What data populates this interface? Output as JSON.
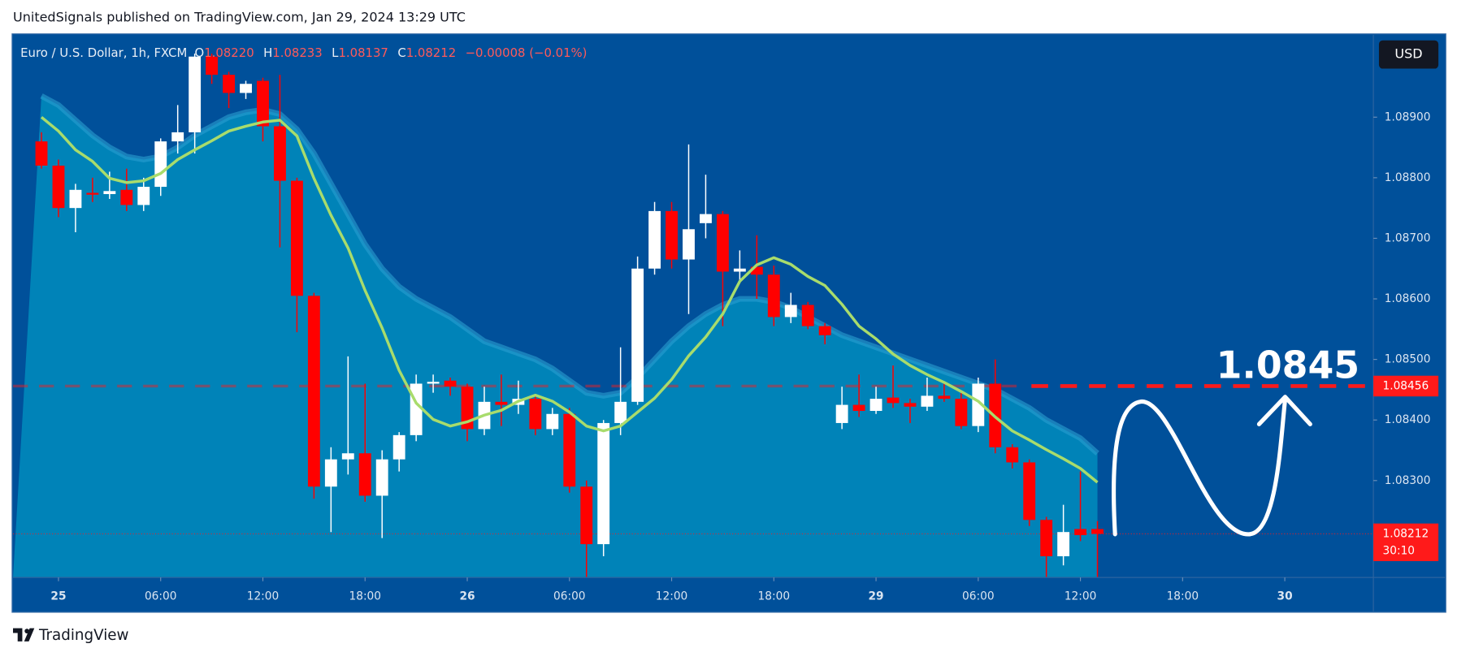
{
  "chart_data": {
    "type": "candlestick",
    "publisher": "UnitedSignals published on TradingView.com, Jan 29, 2024 13:29 UTC",
    "symbol": "Euro / U.S. Dollar, 1h, FXCM",
    "quote": [
      {
        "key": "O",
        "value": "1.08220"
      },
      {
        "key": "H",
        "value": "1.08233"
      },
      {
        "key": "L",
        "value": "1.08137"
      },
      {
        "key": "C",
        "value": "1.08212"
      }
    ],
    "change": "−0.00008 (−0.01%)",
    "currency": "USD",
    "brand": "TradingView",
    "annotation": "1.0845",
    "up_color": "#ffffff",
    "down_color": "#ff0000",
    "x": [
      -1,
      0,
      1,
      2,
      3,
      4,
      5,
      6,
      7,
      8,
      9,
      10,
      11,
      12,
      13,
      14,
      15,
      16,
      17,
      18,
      19,
      20,
      21,
      22,
      23,
      24,
      25,
      26,
      27,
      28,
      29,
      30,
      31,
      32,
      33,
      34,
      35,
      36,
      37,
      38,
      39,
      40,
      41,
      42,
      43,
      44,
      45,
      46,
      47,
      48,
      49,
      50,
      51,
      52,
      53,
      54,
      55,
      56,
      57,
      58,
      59,
      60,
      61
    ],
    "open": [
      1.0886,
      1.0882,
      1.0875,
      1.08775,
      1.08773,
      1.0878,
      1.08755,
      1.08785,
      1.0886,
      1.08875,
      1.09,
      1.0897,
      1.0894,
      1.0896,
      1.08885,
      1.08795,
      1.08605,
      1.0829,
      1.08335,
      1.08345,
      1.08275,
      1.08335,
      1.08375,
      1.0846,
      1.08465,
      1.08455,
      1.08385,
      1.0843,
      1.08425,
      1.08435,
      1.08385,
      1.0841,
      1.0829,
      1.08195,
      1.08395,
      1.0843,
      1.0865,
      1.08745,
      1.08665,
      1.08725,
      1.0874,
      1.08645,
      1.08653,
      1.0864,
      1.0857,
      1.0859,
      1.08555,
      1.08395,
      1.08425,
      1.08415,
      1.08437,
      1.08428,
      1.08422,
      1.0844,
      1.08435,
      1.0839,
      1.0846,
      1.08355,
      1.0833,
      1.08235,
      1.08175,
      1.0822,
      1.0822
    ],
    "high": [
      1.08875,
      1.0883,
      1.0879,
      1.088,
      1.0881,
      1.08815,
      1.088,
      1.08865,
      1.0892,
      1.09005,
      1.09005,
      1.08975,
      1.0896,
      1.08965,
      1.0897,
      1.088,
      1.0861,
      1.08355,
      1.08505,
      1.0846,
      1.0835,
      1.0838,
      1.08475,
      1.08475,
      1.0847,
      1.0846,
      1.08455,
      1.08475,
      1.08465,
      1.0844,
      1.0842,
      1.0842,
      1.083,
      1.084,
      1.0852,
      1.0867,
      1.0876,
      1.0876,
      1.08855,
      1.08805,
      1.08745,
      1.0868,
      1.08705,
      1.08655,
      1.0861,
      1.08595,
      1.0856,
      1.08455,
      1.08475,
      1.08455,
      1.0849,
      1.08435,
      1.0847,
      1.0846,
      1.08445,
      1.0847,
      1.085,
      1.0836,
      1.08335,
      1.0824,
      1.0826,
      1.08315,
      1.08233
    ],
    "low": [
      1.08815,
      1.08735,
      1.0871,
      1.0876,
      1.08765,
      1.08745,
      1.08745,
      1.0877,
      1.0884,
      1.0884,
      1.08955,
      1.08915,
      1.0893,
      1.0886,
      1.08685,
      1.08545,
      1.0827,
      1.08215,
      1.0831,
      1.08265,
      1.08205,
      1.08315,
      1.08365,
      1.08445,
      1.0844,
      1.08365,
      1.08375,
      1.0839,
      1.0841,
      1.08375,
      1.08375,
      1.0828,
      1.0814,
      1.08175,
      1.08375,
      1.08425,
      1.0864,
      1.0865,
      1.08575,
      1.087,
      1.08555,
      1.0863,
      1.086,
      1.08555,
      1.0856,
      1.0855,
      1.08525,
      1.08385,
      1.08405,
      1.0841,
      1.0842,
      1.08395,
      1.08415,
      1.0843,
      1.08385,
      1.0838,
      1.08345,
      1.0832,
      1.08225,
      1.0814,
      1.0816,
      1.082,
      1.08137
    ],
    "close": [
      1.0882,
      1.0875,
      1.0878,
      1.08772,
      1.08778,
      1.08755,
      1.08785,
      1.0886,
      1.08875,
      1.09,
      1.0897,
      1.0894,
      1.08955,
      1.08885,
      1.08795,
      1.08605,
      1.0829,
      1.08335,
      1.08345,
      1.08275,
      1.08335,
      1.08375,
      1.0846,
      1.08463,
      1.08455,
      1.08385,
      1.0843,
      1.08425,
      1.08435,
      1.08385,
      1.0841,
      1.0829,
      1.08195,
      1.08395,
      1.0843,
      1.0865,
      1.08745,
      1.08665,
      1.08715,
      1.0874,
      1.08645,
      1.0865,
      1.0864,
      1.0857,
      1.0859,
      1.08555,
      1.0854,
      1.08425,
      1.08415,
      1.08435,
      1.08428,
      1.08422,
      1.0844,
      1.08435,
      1.0839,
      1.0846,
      1.08355,
      1.0833,
      1.08235,
      1.08175,
      1.08215,
      1.0821,
      1.08212
    ],
    "ma": {
      "color": "#a8dc6c",
      "values": [
        1.089,
        1.08877,
        1.08846,
        1.08827,
        1.08799,
        1.08792,
        1.08795,
        1.08807,
        1.0883,
        1.08846,
        1.08861,
        1.08877,
        1.08885,
        1.08892,
        1.08895,
        1.08869,
        1.08799,
        1.08738,
        1.08684,
        1.08614,
        1.08552,
        1.08482,
        1.08428,
        1.08401,
        1.0839,
        1.08397,
        1.08408,
        1.08416,
        1.08431,
        1.08441,
        1.08431,
        1.08413,
        1.0839,
        1.08382,
        1.0839,
        1.08413,
        1.08436,
        1.08467,
        1.08506,
        1.08537,
        1.08575,
        1.08629,
        1.08656,
        1.08668,
        1.08657,
        1.08637,
        1.08622,
        1.08591,
        1.08555,
        1.08534,
        1.08509,
        1.0849,
        1.08475,
        1.08462,
        1.08447,
        1.08431,
        1.08405,
        1.08382,
        1.08367,
        1.08351,
        1.08336,
        1.0832,
        1.08297
      ]
    },
    "band": {
      "color": "#0083b8",
      "values": [
        1.08935,
        1.0892,
        1.08895,
        1.0887,
        1.0885,
        1.08835,
        1.0883,
        1.08835,
        1.0885,
        1.0887,
        1.08885,
        1.089,
        1.08908,
        1.08912,
        1.08905,
        1.0888,
        1.0884,
        1.0879,
        1.0874,
        1.0869,
        1.0865,
        1.0862,
        1.086,
        1.08585,
        1.0857,
        1.0855,
        1.0853,
        1.0852,
        1.0851,
        1.085,
        1.08485,
        1.08465,
        1.08445,
        1.0844,
        1.08445,
        1.0847,
        1.085,
        1.0853,
        1.08555,
        1.08575,
        1.0859,
        1.086,
        1.086,
        1.08595,
        1.08585,
        1.0857,
        1.08555,
        1.0854,
        1.0853,
        1.0852,
        1.0851,
        1.085,
        1.0849,
        1.0848,
        1.0847,
        1.0846,
        1.0845,
        1.08435,
        1.0842,
        1.084,
        1.08385,
        1.0837,
        1.08345
      ]
    },
    "hline": {
      "value": 1.08456,
      "color": "#ff1a1a"
    },
    "last": {
      "value": 1.08212,
      "countdown": "30:10",
      "color": "#ff1a1a"
    },
    "xlim": [
      -2.67,
      77.2
    ],
    "ylim": [
      1.0814,
      1.09036
    ],
    "xticks": [
      {
        "value": 0,
        "label": "25"
      },
      {
        "value": 6,
        "label": "06:00"
      },
      {
        "value": 12,
        "label": "12:00"
      },
      {
        "value": 18,
        "label": "18:00"
      },
      {
        "value": 24,
        "label": "26"
      },
      {
        "value": 30,
        "label": "06:00"
      },
      {
        "value": 36,
        "label": "12:00"
      },
      {
        "value": 42,
        "label": "18:00"
      },
      {
        "value": 48,
        "label": "29"
      },
      {
        "value": 54,
        "label": "06:00"
      },
      {
        "value": 60,
        "label": "12:00"
      },
      {
        "value": 66,
        "label": "18:00"
      },
      {
        "value": 72,
        "label": "30"
      }
    ],
    "yticks": [
      {
        "value": 1.083,
        "label": "1.08300"
      },
      {
        "value": 1.084,
        "label": "1.08400"
      },
      {
        "value": 1.085,
        "label": "1.08500"
      },
      {
        "value": 1.086,
        "label": "1.08600"
      },
      {
        "value": 1.087,
        "label": "1.08700"
      },
      {
        "value": 1.088,
        "label": "1.08800"
      },
      {
        "value": 1.089,
        "label": "1.08900"
      }
    ]
  }
}
